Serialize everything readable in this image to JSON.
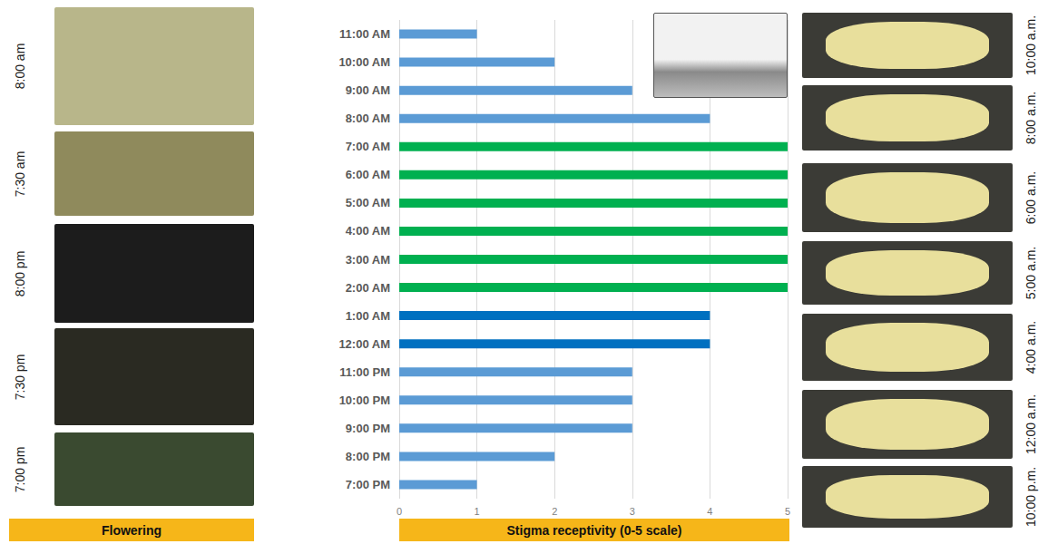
{
  "chart_data": {
    "type": "bar",
    "orientation": "horizontal",
    "categories": [
      "7:00 PM",
      "8:00 PM",
      "9:00 PM",
      "10:00 PM",
      "11:00 PM",
      "12:00 AM",
      "1:00 AM",
      "2:00 AM",
      "3:00 AM",
      "4:00 AM",
      "5:00 AM",
      "6:00 AM",
      "7:00 AM",
      "8:00 AM",
      "9:00 AM",
      "10:00 AM",
      "11:00 AM"
    ],
    "values": [
      1,
      2,
      3,
      3,
      3,
      4,
      4,
      5,
      5,
      5,
      5,
      5,
      5,
      4,
      3,
      2,
      1
    ],
    "colors": [
      "#5b9bd5",
      "#5b9bd5",
      "#5b9bd5",
      "#5b9bd5",
      "#5b9bd5",
      "#0070c0",
      "#0070c0",
      "#00b050",
      "#00b050",
      "#00b050",
      "#00b050",
      "#00b050",
      "#00b050",
      "#5b9bd5",
      "#5b9bd5",
      "#5b9bd5",
      "#5b9bd5"
    ],
    "x_label": "Stigma receptivity (0-5 scale)",
    "xlim": [
      0,
      5
    ],
    "xticks": [
      0,
      1,
      2,
      3,
      4,
      5
    ],
    "grid": true
  },
  "flowering_panel": {
    "caption": "Flowering",
    "labels": [
      "8:00 am",
      "7:30 am",
      "8:00 pm",
      "7:30 pm",
      "7:00 pm"
    ]
  },
  "stigma_panel": {
    "labels": [
      "10:00 a.m.",
      "8:00 a.m.",
      "6:00 a.m.",
      "5:00 a.m.",
      "4:00 a.m.",
      "12:00 a.m.",
      "10:00 p.m."
    ]
  }
}
